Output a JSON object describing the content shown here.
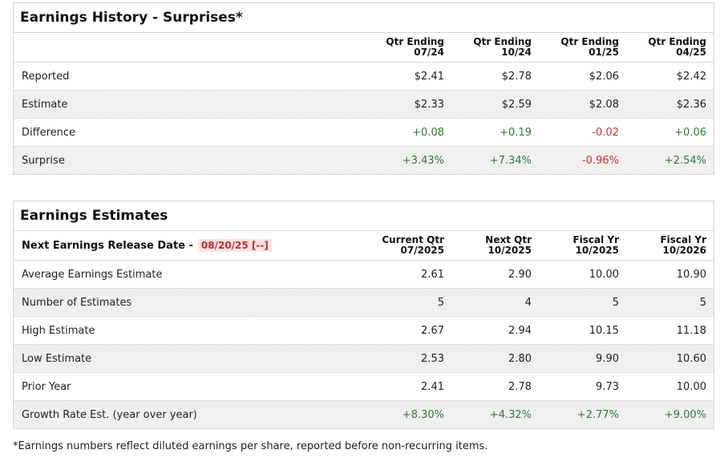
{
  "history": {
    "title": "Earnings History - Surprises*",
    "columns": [
      {
        "line1": "Qtr Ending",
        "line2": "07/24"
      },
      {
        "line1": "Qtr Ending",
        "line2": "10/24"
      },
      {
        "line1": "Qtr Ending",
        "line2": "01/25"
      },
      {
        "line1": "Qtr Ending",
        "line2": "04/25"
      }
    ],
    "rows": [
      {
        "label": "Reported",
        "values": [
          "$2.41",
          "$2.78",
          "$2.06",
          "$2.42"
        ]
      },
      {
        "label": "Estimate",
        "values": [
          "$2.33",
          "$2.59",
          "$2.08",
          "$2.36"
        ]
      },
      {
        "label": "Difference",
        "values": [
          "+0.08",
          "+0.19",
          "-0.02",
          "+0.06"
        ]
      },
      {
        "label": "Surprise",
        "values": [
          "+3.43%",
          "+7.34%",
          "-0.96%",
          "+2.54%"
        ]
      }
    ]
  },
  "estimates": {
    "title": "Earnings Estimates",
    "release_label": "Next Earnings Release Date -",
    "release_date": "08/20/25 [--]",
    "columns": [
      {
        "line1": "Current Qtr",
        "line2": "07/2025"
      },
      {
        "line1": "Next Qtr",
        "line2": "10/2025"
      },
      {
        "line1": "Fiscal Yr",
        "line2": "10/2025"
      },
      {
        "line1": "Fiscal Yr",
        "line2": "10/2026"
      }
    ],
    "rows": [
      {
        "label": "Average Earnings Estimate",
        "values": [
          "2.61",
          "2.90",
          "10.00",
          "10.90"
        ]
      },
      {
        "label": "Number of Estimates",
        "values": [
          "5",
          "4",
          "5",
          "5"
        ]
      },
      {
        "label": "High Estimate",
        "values": [
          "2.67",
          "2.94",
          "10.15",
          "11.18"
        ]
      },
      {
        "label": "Low Estimate",
        "values": [
          "2.53",
          "2.80",
          "9.90",
          "10.60"
        ]
      },
      {
        "label": "Prior Year",
        "values": [
          "2.41",
          "2.78",
          "9.73",
          "10.00"
        ]
      },
      {
        "label": "Growth Rate Est. (year over year)",
        "values": [
          "+8.30%",
          "+4.32%",
          "+2.77%",
          "+9.00%"
        ]
      }
    ]
  },
  "colors": {
    "positive": "#2e7d32",
    "negative": "#d32f2f"
  },
  "footnote": "*Earnings numbers reflect diluted earnings per share, reported before non-recurring items."
}
